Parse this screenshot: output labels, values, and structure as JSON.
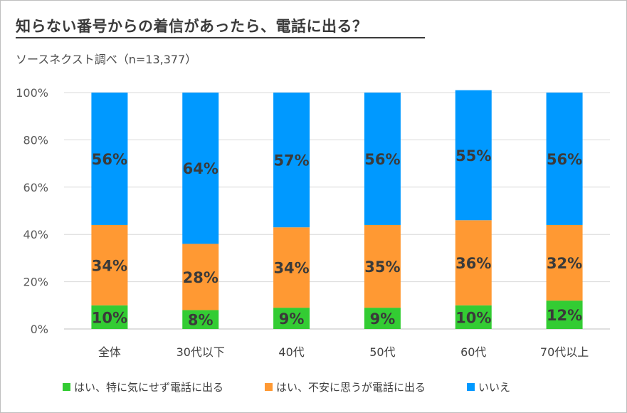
{
  "title": "知らない番号からの着信があったら、電話に出る？",
  "subtitle": "ソースネクスト調べ（n=13,377）",
  "chart_data": {
    "type": "bar",
    "stacked": true,
    "categories": [
      "全体",
      "30代以下",
      "40代",
      "50代",
      "60代",
      "70代以上"
    ],
    "series": [
      {
        "name": "はい、特に気にせず電話に出る",
        "color": "#33cc33",
        "values": [
          10,
          8,
          9,
          9,
          10,
          12
        ],
        "labels": [
          "10%",
          "8%",
          "9%",
          "9%",
          "10%",
          "12%"
        ]
      },
      {
        "name": "はい、不安に思うが電話に出る",
        "color": "#ff9933",
        "values": [
          34,
          28,
          34,
          35,
          36,
          32
        ],
        "labels": [
          "34%",
          "28%",
          "34%",
          "35%",
          "36%",
          "32%"
        ]
      },
      {
        "name": "いいえ",
        "color": "#0099ff",
        "values": [
          56,
          64,
          57,
          56,
          55,
          56
        ],
        "labels": [
          "56%",
          "64%",
          "57%",
          "56%",
          "55%",
          "56%"
        ]
      }
    ],
    "yticks": [
      "0%",
      "20%",
      "40%",
      "60%",
      "80%",
      "100%"
    ],
    "ylim": [
      0,
      100
    ],
    "ylabel": "",
    "xlabel": "",
    "legend": "bottom"
  }
}
